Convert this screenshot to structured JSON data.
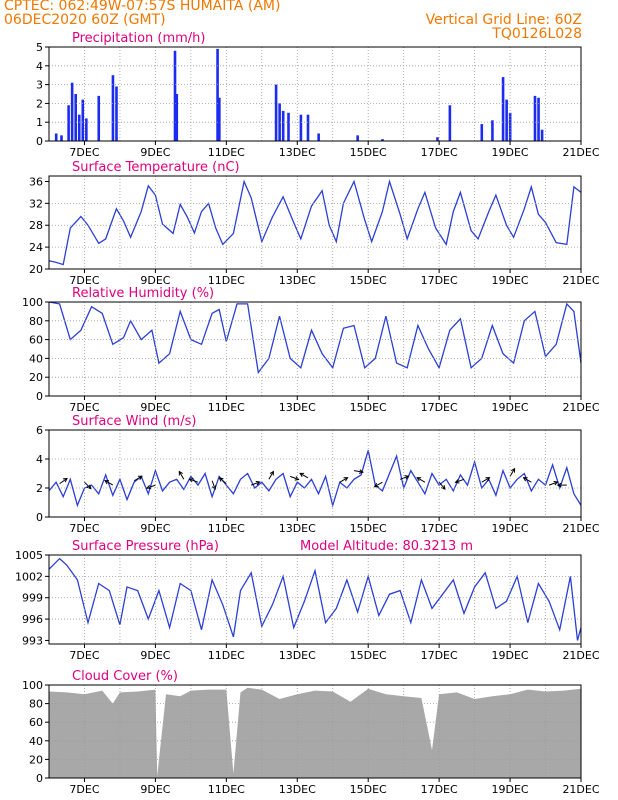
{
  "header": {
    "line1": "CPTEC:  062:49W-07:57S  HUMAITA (AM)",
    "line2": "06DEC2020 60Z (GMT)",
    "grid_note": "Vertical Grid Line: 60Z",
    "run_code": "TQ0126L028"
  },
  "x_labels": [
    "7DEC",
    "9DEC",
    "11DEC",
    "13DEC",
    "15DEC",
    "17DEC",
    "19DEC",
    "21DEC"
  ],
  "chart_data": [
    {
      "type": "bar",
      "title": "Precipitation (mm/h)",
      "ylim": [
        0,
        5
      ],
      "yticks": [
        "0",
        "1",
        "2",
        "3",
        "4",
        "5"
      ],
      "events": [
        {
          "day": 6.2,
          "value": 0.4
        },
        {
          "day": 6.35,
          "value": 0.3
        },
        {
          "day": 6.55,
          "value": 1.9
        },
        {
          "day": 6.65,
          "value": 3.1
        },
        {
          "day": 6.75,
          "value": 2.5
        },
        {
          "day": 6.85,
          "value": 1.4
        },
        {
          "day": 6.95,
          "value": 2.2
        },
        {
          "day": 7.05,
          "value": 1.2
        },
        {
          "day": 7.4,
          "value": 2.4
        },
        {
          "day": 7.8,
          "value": 3.5
        },
        {
          "day": 7.9,
          "value": 2.9
        },
        {
          "day": 9.55,
          "value": 4.8
        },
        {
          "day": 9.6,
          "value": 2.5
        },
        {
          "day": 10.75,
          "value": 4.9
        },
        {
          "day": 10.8,
          "value": 2.3
        },
        {
          "day": 12.4,
          "value": 3.0
        },
        {
          "day": 12.5,
          "value": 2.0
        },
        {
          "day": 12.6,
          "value": 1.6
        },
        {
          "day": 12.75,
          "value": 1.5
        },
        {
          "day": 13.1,
          "value": 1.4
        },
        {
          "day": 13.3,
          "value": 1.4
        },
        {
          "day": 13.6,
          "value": 0.4
        },
        {
          "day": 14.7,
          "value": 0.3
        },
        {
          "day": 15.4,
          "value": 0.1
        },
        {
          "day": 16.95,
          "value": 0.2
        },
        {
          "day": 17.3,
          "value": 1.9
        },
        {
          "day": 18.2,
          "value": 0.9
        },
        {
          "day": 18.5,
          "value": 1.1
        },
        {
          "day": 18.8,
          "value": 3.4
        },
        {
          "day": 18.9,
          "value": 2.2
        },
        {
          "day": 19.0,
          "value": 1.5
        },
        {
          "day": 19.7,
          "value": 2.4
        },
        {
          "day": 19.8,
          "value": 2.3
        },
        {
          "day": 19.9,
          "value": 0.6
        }
      ]
    },
    {
      "type": "line",
      "title": "Surface Temperature (nC)",
      "ylim": [
        20,
        37
      ],
      "yticks": [
        "20",
        "24",
        "28",
        "32",
        "36"
      ],
      "x": [
        6.0,
        6.2,
        6.4,
        6.6,
        6.9,
        7.1,
        7.4,
        7.6,
        7.9,
        8.1,
        8.3,
        8.6,
        8.8,
        9.0,
        9.2,
        9.5,
        9.7,
        9.9,
        10.1,
        10.3,
        10.5,
        10.7,
        10.9,
        11.2,
        11.5,
        11.7,
        12.0,
        12.3,
        12.6,
        12.9,
        13.1,
        13.4,
        13.7,
        13.9,
        14.1,
        14.3,
        14.6,
        14.9,
        15.1,
        15.4,
        15.6,
        15.9,
        16.1,
        16.4,
        16.6,
        16.9,
        17.2,
        17.4,
        17.6,
        17.9,
        18.1,
        18.4,
        18.6,
        18.9,
        19.1,
        19.4,
        19.6,
        19.8,
        20.0,
        20.3,
        20.6,
        20.8,
        21.0
      ],
      "y": [
        21.5,
        21.2,
        20.8,
        27.5,
        29.6,
        28.0,
        24.7,
        25.5,
        31.0,
        28.8,
        25.8,
        30.5,
        35.2,
        33.5,
        28.2,
        26.5,
        31.8,
        29.5,
        26.6,
        30.5,
        32.0,
        27.5,
        24.5,
        26.5,
        36.0,
        33.0,
        25.0,
        29.5,
        33.2,
        28.5,
        25.5,
        31.5,
        34.3,
        28.0,
        25.0,
        32.0,
        36.0,
        29.0,
        25.0,
        30.5,
        36.0,
        30.0,
        25.5,
        31.0,
        34.0,
        27.5,
        24.5,
        30.5,
        34.0,
        27.0,
        25.5,
        30.5,
        33.5,
        28.0,
        25.8,
        31.0,
        35.0,
        30.0,
        28.5,
        24.8,
        24.5,
        35.0,
        34.0
      ]
    },
    {
      "type": "line",
      "title": "Relative Humidity (%)",
      "ylim": [
        0,
        100
      ],
      "yticks": [
        "0",
        "20",
        "40",
        "60",
        "80",
        "100"
      ],
      "x": [
        6.0,
        6.3,
        6.6,
        6.9,
        7.2,
        7.5,
        7.8,
        8.1,
        8.3,
        8.6,
        8.9,
        9.1,
        9.4,
        9.7,
        10.0,
        10.3,
        10.6,
        10.8,
        11.0,
        11.3,
        11.6,
        11.9,
        12.2,
        12.5,
        12.8,
        13.1,
        13.4,
        13.7,
        14.0,
        14.3,
        14.6,
        14.9,
        15.2,
        15.5,
        15.8,
        16.1,
        16.4,
        16.7,
        17.0,
        17.3,
        17.6,
        17.9,
        18.2,
        18.5,
        18.8,
        19.1,
        19.4,
        19.7,
        20.0,
        20.3,
        20.6,
        20.8,
        21.0
      ],
      "y": [
        100,
        98,
        60,
        70,
        95,
        88,
        55,
        62,
        80,
        60,
        70,
        35,
        45,
        90,
        60,
        55,
        88,
        92,
        58,
        98,
        98,
        25,
        40,
        85,
        40,
        30,
        70,
        45,
        30,
        72,
        75,
        30,
        40,
        85,
        35,
        30,
        75,
        50,
        30,
        70,
        82,
        30,
        40,
        75,
        45,
        35,
        80,
        90,
        42,
        55,
        98,
        90,
        35
      ]
    },
    {
      "type": "line",
      "title": "Surface Wind (m/s)",
      "ylim": [
        0,
        6
      ],
      "yticks": [
        "0",
        "2",
        "4",
        "6"
      ],
      "x": [
        6.0,
        6.2,
        6.4,
        6.6,
        6.8,
        7.0,
        7.2,
        7.4,
        7.6,
        7.8,
        8.0,
        8.2,
        8.4,
        8.6,
        8.8,
        9.0,
        9.2,
        9.4,
        9.6,
        9.8,
        10.0,
        10.2,
        10.4,
        10.6,
        10.8,
        11.0,
        11.2,
        11.4,
        11.6,
        11.8,
        12.0,
        12.2,
        12.4,
        12.6,
        12.8,
        13.0,
        13.2,
        13.4,
        13.6,
        13.8,
        14.0,
        14.2,
        14.4,
        14.6,
        14.8,
        15.0,
        15.2,
        15.4,
        15.6,
        15.8,
        16.0,
        16.2,
        16.4,
        16.6,
        16.8,
        17.0,
        17.2,
        17.4,
        17.6,
        17.8,
        18.0,
        18.2,
        18.4,
        18.6,
        18.8,
        19.0,
        19.2,
        19.4,
        19.6,
        19.8,
        20.0,
        20.2,
        20.4,
        20.6,
        20.8,
        21.0
      ],
      "y": [
        1.8,
        2.4,
        1.4,
        2.6,
        0.8,
        2.0,
        2.2,
        1.6,
        2.9,
        1.5,
        2.6,
        1.2,
        2.4,
        2.8,
        1.6,
        3.2,
        1.8,
        2.4,
        2.6,
        1.9,
        2.8,
        2.2,
        3.0,
        1.4,
        2.8,
        2.2,
        1.6,
        2.6,
        3.0,
        2.0,
        2.4,
        1.8,
        2.6,
        3.0,
        1.4,
        2.4,
        2.0,
        2.6,
        1.6,
        2.8,
        0.8,
        2.4,
        2.0,
        2.6,
        2.9,
        4.6,
        2.2,
        1.8,
        3.0,
        4.2,
        2.0,
        3.2,
        2.4,
        1.6,
        3.0,
        2.2,
        2.6,
        1.8,
        2.9,
        2.2,
        3.8,
        2.0,
        2.6,
        1.5,
        3.2,
        2.0,
        2.6,
        3.0,
        1.8,
        2.6,
        2.2,
        3.6,
        2.0,
        3.4,
        1.6,
        0.8
      ],
      "arrows": [
        {
          "day": 6.3,
          "dir_deg": 35,
          "speed": 2.3
        },
        {
          "day": 7.0,
          "dir_deg": -45,
          "speed": 2.4
        },
        {
          "day": 7.8,
          "dir_deg": 150,
          "speed": 2.2
        },
        {
          "day": 8.4,
          "dir_deg": 30,
          "speed": 2.5
        },
        {
          "day": 9.0,
          "dir_deg": 200,
          "speed": 2.2
        },
        {
          "day": 9.8,
          "dir_deg": 120,
          "speed": 2.6
        },
        {
          "day": 10.2,
          "dir_deg": 160,
          "speed": 2.4
        },
        {
          "day": 10.6,
          "dir_deg": -70,
          "speed": 2.5
        },
        {
          "day": 11.0,
          "dir_deg": 140,
          "speed": 2.3
        },
        {
          "day": 11.7,
          "dir_deg": 20,
          "speed": 2.2
        },
        {
          "day": 12.2,
          "dir_deg": 60,
          "speed": 2.6
        },
        {
          "day": 12.8,
          "dir_deg": -20,
          "speed": 2.8
        },
        {
          "day": 13.3,
          "dir_deg": 150,
          "speed": 2.7
        },
        {
          "day": 14.2,
          "dir_deg": 30,
          "speed": 2.4
        },
        {
          "day": 14.6,
          "dir_deg": -10,
          "speed": 3.2
        },
        {
          "day": 15.4,
          "dir_deg": 210,
          "speed": 2.4
        },
        {
          "day": 15.9,
          "dir_deg": 20,
          "speed": 2.6
        },
        {
          "day": 16.6,
          "dir_deg": 150,
          "speed": 2.4
        },
        {
          "day": 17.0,
          "dir_deg": -50,
          "speed": 2.4
        },
        {
          "day": 17.7,
          "dir_deg": 200,
          "speed": 2.6
        },
        {
          "day": 18.2,
          "dir_deg": 30,
          "speed": 2.4
        },
        {
          "day": 19.0,
          "dir_deg": 60,
          "speed": 2.8
        },
        {
          "day": 19.6,
          "dir_deg": 150,
          "speed": 2.4
        },
        {
          "day": 20.1,
          "dir_deg": 20,
          "speed": 2.2
        },
        {
          "day": 20.6,
          "dir_deg": 180,
          "speed": 2.2
        }
      ]
    },
    {
      "type": "line",
      "title": "Surface Pressure (hPa)",
      "annotation": "Model Altitude: 80.3213 m",
      "ylim": [
        992.5,
        1005
      ],
      "yticks": [
        "993",
        "996",
        "999",
        "1002",
        "1005"
      ],
      "x": [
        6.0,
        6.3,
        6.5,
        6.8,
        7.1,
        7.4,
        7.7,
        8.0,
        8.2,
        8.5,
        8.8,
        9.1,
        9.4,
        9.7,
        10.0,
        10.3,
        10.6,
        10.9,
        11.2,
        11.4,
        11.7,
        12.0,
        12.3,
        12.6,
        12.9,
        13.2,
        13.5,
        13.8,
        14.1,
        14.4,
        14.7,
        15.0,
        15.3,
        15.6,
        15.9,
        16.2,
        16.5,
        16.8,
        17.1,
        17.4,
        17.7,
        18.0,
        18.3,
        18.6,
        18.9,
        19.2,
        19.5,
        19.8,
        20.1,
        20.4,
        20.7,
        20.9,
        21.0
      ],
      "y": [
        1003.0,
        1004.5,
        1003.6,
        1001.5,
        995.5,
        1001.0,
        1000.0,
        995.2,
        1000.5,
        1000.0,
        996.0,
        1000.0,
        994.8,
        1001.0,
        1000.0,
        994.5,
        1001.5,
        998.0,
        993.5,
        1000.0,
        1002.5,
        995.0,
        998.0,
        1002.0,
        994.8,
        998.5,
        1002.8,
        995.5,
        997.5,
        1001.5,
        997.0,
        1002.0,
        996.5,
        999.5,
        1000.0,
        995.5,
        1001.5,
        997.5,
        999.5,
        1001.5,
        996.8,
        1000.5,
        1002.5,
        997.5,
        998.5,
        1002.0,
        995.5,
        1001.0,
        998.5,
        994.5,
        1002.0,
        993.0,
        994.8
      ]
    },
    {
      "type": "area",
      "title": "Cloud Cover (%)",
      "ylim": [
        0,
        100
      ],
      "yticks": [
        "0",
        "20",
        "40",
        "60",
        "80",
        "100"
      ],
      "x": [
        6.0,
        6.5,
        7.0,
        7.5,
        7.8,
        8.0,
        8.5,
        9.0,
        9.05,
        9.3,
        9.7,
        10.0,
        10.5,
        11.0,
        11.2,
        11.4,
        11.6,
        12.0,
        12.5,
        13.0,
        13.5,
        14.0,
        14.5,
        15.0,
        15.5,
        16.0,
        16.5,
        16.8,
        17.0,
        17.5,
        18.0,
        18.5,
        19.0,
        19.5,
        20.0,
        20.5,
        21.0
      ],
      "y": [
        93,
        92,
        90,
        94,
        80,
        92,
        93,
        95,
        2,
        90,
        88,
        94,
        95,
        95,
        5,
        92,
        97,
        95,
        85,
        90,
        94,
        93,
        82,
        96,
        90,
        88,
        86,
        30,
        90,
        92,
        85,
        88,
        90,
        95,
        93,
        94,
        96
      ],
      "fill_color": "#a8a8a8"
    }
  ],
  "colors": {
    "header": "#f07800",
    "title": "#e0007e",
    "line": "#2b3fd6",
    "bar": "#1b2cf0"
  }
}
